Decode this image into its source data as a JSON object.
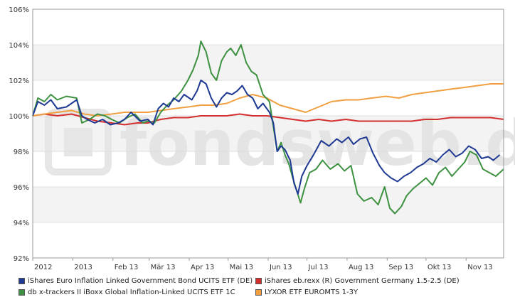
{
  "chart_data": {
    "type": "line",
    "yunit": "%",
    "ylim": [
      92,
      106
    ],
    "yticks": [
      92,
      94,
      96,
      98,
      100,
      102,
      104,
      106
    ],
    "ytick_labels": [
      "92%",
      "94%",
      "96%",
      "98%",
      "100%",
      "102%",
      "104%",
      "106%"
    ],
    "xlim": [
      "2012-12-01",
      "2013-11-30"
    ],
    "xticks": [
      {
        "date": "2012-12-01",
        "label": "2012"
      },
      {
        "date": "2013-01-01",
        "label": "2013"
      },
      {
        "date": "2013-02-01",
        "label": "Feb 13"
      },
      {
        "date": "2013-03-01",
        "label": "Mär 13"
      },
      {
        "date": "2013-04-01",
        "label": "Apr 13"
      },
      {
        "date": "2013-05-01",
        "label": "Mai 13"
      },
      {
        "date": "2013-06-01",
        "label": "Jun 13"
      },
      {
        "date": "2013-07-01",
        "label": "Jul 13"
      },
      {
        "date": "2013-08-01",
        "label": "Aug 13"
      },
      {
        "date": "2013-09-01",
        "label": "Sep 13"
      },
      {
        "date": "2013-10-01",
        "label": "Okt 13"
      },
      {
        "date": "2013-11-01",
        "label": "Nov 13"
      }
    ],
    "watermark": "fondsweb.de",
    "series": [
      {
        "name": "iShares Euro Inflation Linked Government Bond UCITS ETF (DE)",
        "color": "#1f3a93",
        "points": [
          [
            "2012-12-01",
            100
          ],
          [
            "2012-12-05",
            100.8
          ],
          [
            "2012-12-10",
            100.6
          ],
          [
            "2012-12-15",
            100.9
          ],
          [
            "2012-12-20",
            100.4
          ],
          [
            "2012-12-27",
            100.5
          ],
          [
            "2013-01-04",
            100.9
          ],
          [
            "2013-01-08",
            100.0
          ],
          [
            "2013-01-12",
            99.8
          ],
          [
            "2013-01-18",
            99.6
          ],
          [
            "2013-01-24",
            99.8
          ],
          [
            "2013-01-30",
            99.5
          ],
          [
            "2013-02-05",
            99.6
          ],
          [
            "2013-02-10",
            99.8
          ],
          [
            "2013-02-15",
            100.2
          ],
          [
            "2013-02-22",
            99.7
          ],
          [
            "2013-02-28",
            99.8
          ],
          [
            "2013-03-04",
            99.5
          ],
          [
            "2013-03-08",
            100.4
          ],
          [
            "2013-03-12",
            100.7
          ],
          [
            "2013-03-16",
            100.5
          ],
          [
            "2013-03-20",
            101.0
          ],
          [
            "2013-03-24",
            100.8
          ],
          [
            "2013-03-28",
            101.2
          ],
          [
            "2013-04-03",
            100.9
          ],
          [
            "2013-04-07",
            101.4
          ],
          [
            "2013-04-10",
            102.0
          ],
          [
            "2013-04-14",
            101.8
          ],
          [
            "2013-04-18",
            101.0
          ],
          [
            "2013-04-22",
            100.5
          ],
          [
            "2013-04-26",
            101.0
          ],
          [
            "2013-04-30",
            101.3
          ],
          [
            "2013-05-04",
            101.2
          ],
          [
            "2013-05-08",
            101.4
          ],
          [
            "2013-05-12",
            101.7
          ],
          [
            "2013-05-16",
            101.2
          ],
          [
            "2013-05-20",
            101.0
          ],
          [
            "2013-05-24",
            100.4
          ],
          [
            "2013-05-28",
            100.7
          ],
          [
            "2013-06-02",
            100.2
          ],
          [
            "2013-06-05",
            99.6
          ],
          [
            "2013-06-08",
            98.0
          ],
          [
            "2013-06-11",
            98.3
          ],
          [
            "2013-06-14",
            98.1
          ],
          [
            "2013-06-18",
            97.5
          ],
          [
            "2013-06-21",
            96.2
          ],
          [
            "2013-06-24",
            95.6
          ],
          [
            "2013-06-27",
            96.6
          ],
          [
            "2013-07-01",
            97.2
          ],
          [
            "2013-07-06",
            97.8
          ],
          [
            "2013-07-12",
            98.6
          ],
          [
            "2013-07-18",
            98.3
          ],
          [
            "2013-07-24",
            98.7
          ],
          [
            "2013-07-28",
            98.5
          ],
          [
            "2013-08-02",
            98.8
          ],
          [
            "2013-08-06",
            98.4
          ],
          [
            "2013-08-11",
            98.7
          ],
          [
            "2013-08-16",
            98.8
          ],
          [
            "2013-08-21",
            97.9
          ],
          [
            "2013-08-26",
            97.2
          ],
          [
            "2013-08-30",
            96.8
          ],
          [
            "2013-09-04",
            96.5
          ],
          [
            "2013-09-09",
            96.3
          ],
          [
            "2013-09-14",
            96.6
          ],
          [
            "2013-09-19",
            96.8
          ],
          [
            "2013-09-24",
            97.1
          ],
          [
            "2013-09-29",
            97.3
          ],
          [
            "2013-10-04",
            97.6
          ],
          [
            "2013-10-09",
            97.4
          ],
          [
            "2013-10-14",
            97.8
          ],
          [
            "2013-10-19",
            98.1
          ],
          [
            "2013-10-24",
            97.7
          ],
          [
            "2013-10-29",
            97.9
          ],
          [
            "2013-11-03",
            98.3
          ],
          [
            "2013-11-08",
            98.1
          ],
          [
            "2013-11-13",
            97.6
          ],
          [
            "2013-11-18",
            97.7
          ],
          [
            "2013-11-22",
            97.5
          ],
          [
            "2013-11-27",
            97.8
          ]
        ]
      },
      {
        "name": "iShares eb.rexx (R) Government Germany 1.5-2.5 (DE)",
        "color": "#d32f2f",
        "points": [
          [
            "2012-12-01",
            100
          ],
          [
            "2012-12-10",
            100.1
          ],
          [
            "2012-12-20",
            100.0
          ],
          [
            "2012-12-31",
            100.1
          ],
          [
            "2013-01-10",
            99.9
          ],
          [
            "2013-01-20",
            99.7
          ],
          [
            "2013-01-31",
            99.6
          ],
          [
            "2013-02-10",
            99.5
          ],
          [
            "2013-02-20",
            99.6
          ],
          [
            "2013-02-28",
            99.6
          ],
          [
            "2013-03-10",
            99.8
          ],
          [
            "2013-03-20",
            99.9
          ],
          [
            "2013-03-31",
            99.9
          ],
          [
            "2013-04-10",
            100.0
          ],
          [
            "2013-04-20",
            100.0
          ],
          [
            "2013-04-30",
            100.0
          ],
          [
            "2013-05-10",
            100.1
          ],
          [
            "2013-05-20",
            100.0
          ],
          [
            "2013-05-31",
            100.0
          ],
          [
            "2013-06-10",
            99.9
          ],
          [
            "2013-06-20",
            99.8
          ],
          [
            "2013-06-30",
            99.7
          ],
          [
            "2013-07-10",
            99.8
          ],
          [
            "2013-07-20",
            99.7
          ],
          [
            "2013-07-31",
            99.8
          ],
          [
            "2013-08-10",
            99.7
          ],
          [
            "2013-08-20",
            99.7
          ],
          [
            "2013-08-31",
            99.7
          ],
          [
            "2013-09-10",
            99.7
          ],
          [
            "2013-09-20",
            99.7
          ],
          [
            "2013-09-30",
            99.8
          ],
          [
            "2013-10-10",
            99.8
          ],
          [
            "2013-10-20",
            99.9
          ],
          [
            "2013-10-31",
            99.9
          ],
          [
            "2013-11-10",
            99.9
          ],
          [
            "2013-11-20",
            99.9
          ],
          [
            "2013-11-30",
            99.8
          ]
        ]
      },
      {
        "name": "db x-trackers II iBoxx Global Inflation-Linked UCITS ETF 1C",
        "color": "#3d9140",
        "points": [
          [
            "2012-12-01",
            100
          ],
          [
            "2012-12-05",
            101.0
          ],
          [
            "2012-12-10",
            100.8
          ],
          [
            "2012-12-15",
            101.2
          ],
          [
            "2012-12-20",
            100.9
          ],
          [
            "2012-12-27",
            101.1
          ],
          [
            "2013-01-04",
            101.0
          ],
          [
            "2013-01-08",
            99.6
          ],
          [
            "2013-01-14",
            99.8
          ],
          [
            "2013-01-20",
            100.1
          ],
          [
            "2013-01-26",
            100.0
          ],
          [
            "2013-01-31",
            99.8
          ],
          [
            "2013-02-06",
            99.6
          ],
          [
            "2013-02-12",
            99.9
          ],
          [
            "2013-02-18",
            100.1
          ],
          [
            "2013-02-24",
            99.6
          ],
          [
            "2013-02-28",
            99.7
          ],
          [
            "2013-03-05",
            99.6
          ],
          [
            "2013-03-10",
            100.2
          ],
          [
            "2013-03-15",
            100.6
          ],
          [
            "2013-03-20",
            100.9
          ],
          [
            "2013-03-26",
            101.4
          ],
          [
            "2013-03-31",
            102.0
          ],
          [
            "2013-04-04",
            102.6
          ],
          [
            "2013-04-08",
            103.4
          ],
          [
            "2013-04-10",
            104.2
          ],
          [
            "2013-04-14",
            103.6
          ],
          [
            "2013-04-18",
            102.4
          ],
          [
            "2013-04-22",
            102.0
          ],
          [
            "2013-04-26",
            103.1
          ],
          [
            "2013-04-30",
            103.6
          ],
          [
            "2013-05-03",
            103.8
          ],
          [
            "2013-05-07",
            103.4
          ],
          [
            "2013-05-11",
            104.0
          ],
          [
            "2013-05-15",
            103.0
          ],
          [
            "2013-05-19",
            102.5
          ],
          [
            "2013-05-23",
            102.3
          ],
          [
            "2013-05-28",
            101.2
          ],
          [
            "2013-06-02",
            100.8
          ],
          [
            "2013-06-05",
            99.4
          ],
          [
            "2013-06-08",
            98.0
          ],
          [
            "2013-06-11",
            98.5
          ],
          [
            "2013-06-14",
            97.8
          ],
          [
            "2013-06-17",
            97.3
          ],
          [
            "2013-06-20",
            96.5
          ],
          [
            "2013-06-23",
            95.8
          ],
          [
            "2013-06-26",
            95.1
          ],
          [
            "2013-06-29",
            95.9
          ],
          [
            "2013-07-03",
            96.8
          ],
          [
            "2013-07-08",
            97.0
          ],
          [
            "2013-07-13",
            97.5
          ],
          [
            "2013-07-19",
            97.0
          ],
          [
            "2013-07-25",
            97.3
          ],
          [
            "2013-07-30",
            96.9
          ],
          [
            "2013-08-04",
            97.2
          ],
          [
            "2013-08-09",
            95.6
          ],
          [
            "2013-08-14",
            95.2
          ],
          [
            "2013-08-20",
            95.4
          ],
          [
            "2013-08-25",
            95.0
          ],
          [
            "2013-08-30",
            96.0
          ],
          [
            "2013-09-03",
            94.8
          ],
          [
            "2013-09-07",
            94.5
          ],
          [
            "2013-09-12",
            94.9
          ],
          [
            "2013-09-16",
            95.5
          ],
          [
            "2013-09-21",
            95.9
          ],
          [
            "2013-09-26",
            96.2
          ],
          [
            "2013-10-01",
            96.5
          ],
          [
            "2013-10-06",
            96.1
          ],
          [
            "2013-10-11",
            96.8
          ],
          [
            "2013-10-16",
            97.1
          ],
          [
            "2013-10-21",
            96.6
          ],
          [
            "2013-10-26",
            97.0
          ],
          [
            "2013-10-31",
            97.4
          ],
          [
            "2013-11-04",
            98.0
          ],
          [
            "2013-11-09",
            97.8
          ],
          [
            "2013-11-14",
            97.0
          ],
          [
            "2013-11-19",
            96.8
          ],
          [
            "2013-11-24",
            96.6
          ],
          [
            "2013-11-30",
            97.0
          ]
        ]
      },
      {
        "name": "LYXOR ETF EUROMTS 1-3Y",
        "color": "#f0a040",
        "points": [
          [
            "2012-12-01",
            100
          ],
          [
            "2012-12-10",
            100.1
          ],
          [
            "2012-12-20",
            100.2
          ],
          [
            "2012-12-31",
            100.3
          ],
          [
            "2013-01-10",
            100.1
          ],
          [
            "2013-01-20",
            100.0
          ],
          [
            "2013-01-31",
            100.1
          ],
          [
            "2013-02-10",
            100.2
          ],
          [
            "2013-02-20",
            100.2
          ],
          [
            "2013-02-28",
            100.2
          ],
          [
            "2013-03-10",
            100.3
          ],
          [
            "2013-03-20",
            100.4
          ],
          [
            "2013-03-31",
            100.5
          ],
          [
            "2013-04-10",
            100.6
          ],
          [
            "2013-04-20",
            100.6
          ],
          [
            "2013-04-30",
            100.7
          ],
          [
            "2013-05-10",
            101.0
          ],
          [
            "2013-05-20",
            101.2
          ],
          [
            "2013-05-31",
            101.0
          ],
          [
            "2013-06-10",
            100.6
          ],
          [
            "2013-06-20",
            100.4
          ],
          [
            "2013-06-30",
            100.2
          ],
          [
            "2013-07-10",
            100.5
          ],
          [
            "2013-07-20",
            100.8
          ],
          [
            "2013-07-31",
            100.9
          ],
          [
            "2013-08-10",
            100.9
          ],
          [
            "2013-08-20",
            101.0
          ],
          [
            "2013-08-31",
            101.1
          ],
          [
            "2013-09-10",
            101.0
          ],
          [
            "2013-09-20",
            101.2
          ],
          [
            "2013-09-30",
            101.3
          ],
          [
            "2013-10-10",
            101.4
          ],
          [
            "2013-10-20",
            101.5
          ],
          [
            "2013-10-31",
            101.6
          ],
          [
            "2013-11-10",
            101.7
          ],
          [
            "2013-11-20",
            101.8
          ],
          [
            "2013-11-30",
            101.8
          ]
        ]
      }
    ]
  }
}
